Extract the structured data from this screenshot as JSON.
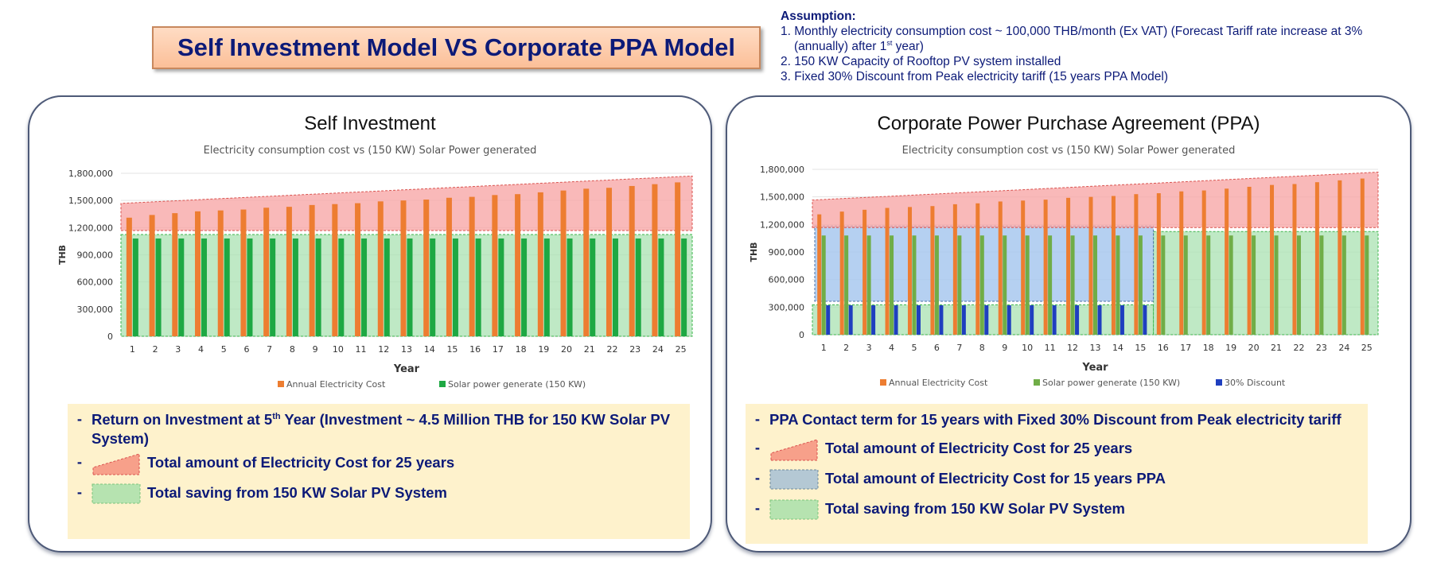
{
  "title": "Self Investment Model VS Corporate PPA Model",
  "assumptions": {
    "heading": "Assumption:",
    "item1_a": "1. Monthly electricity consumption cost ~ 100,000 THB/month (Ex VAT) (Forecast Tariff rate increase at 3%",
    "item1_b_pre": "(annually) after 1",
    "item1_b_sup": "st",
    "item1_b_post": " year)",
    "item2": "2. 150 KW Capacity of Rooftop PV system installed",
    "item3": "3. Fixed 30% Discount from Peak electricity tariff (15 years PPA Model)"
  },
  "colors": {
    "title_text": "#0c1a78",
    "cost_bar": "#ed7d31",
    "solar_bar_left": "#1ea843",
    "solar_bar_right": "#70ad47",
    "discount_bar": "#1f3fbf",
    "red_area": "#f7a8a8",
    "green_area": "#a9e2b2",
    "blue_area": "#a8c8ee",
    "note_bg": "#fef2cc"
  },
  "left_panel": {
    "title": "Self Investment",
    "subtitle": "Electricity consumption  cost vs (150 KW) Solar Power generated",
    "notes": {
      "roi_pre": "Return on Investment at 5",
      "roi_sup": "th",
      "roi_post": " Year (Investment ~ 4.5 Million THB for 150 KW Solar PV System)",
      "total_cost": "Total amount of Electricity Cost for 25 years",
      "total_saving": "Total saving from 150 KW Solar PV System"
    }
  },
  "right_panel": {
    "title": "Corporate Power Purchase Agreement (PPA)",
    "subtitle": "Electricity consumption  cost vs (150 KW) Solar Power generated",
    "notes": {
      "ppa_term": "PPA Contact term for 15 years with Fixed 30% Discount from Peak electricity tariff",
      "total_cost": "Total amount of Electricity Cost for 25 years",
      "ppa_cost": "Total amount of Electricity Cost for 15 years PPA",
      "total_saving": "Total saving from 150 KW Solar PV System"
    }
  },
  "chart_data": [
    {
      "type": "bar",
      "title": "Self Investment",
      "subtitle": "Electricity consumption  cost vs (150 KW) Solar Power generated",
      "xlabel": "Year",
      "ylabel": "THB",
      "ylim": [
        0,
        1800000
      ],
      "yticks": [
        0,
        300000,
        600000,
        900000,
        1200000,
        1500000,
        1800000
      ],
      "ytick_labels": [
        "0",
        "300,000",
        "600,000",
        "900,000",
        "1,200,000",
        "1,500,000",
        "1,800,000"
      ],
      "grid": true,
      "legend": "bottom",
      "categories": [
        "1",
        "2",
        "3",
        "4",
        "5",
        "6",
        "7",
        "8",
        "9",
        "10",
        "11",
        "12",
        "13",
        "14",
        "15",
        "16",
        "17",
        "18",
        "19",
        "20",
        "21",
        "22",
        "23",
        "24",
        "25"
      ],
      "series": [
        {
          "name": "Annual Electricity Cost",
          "values": [
            1310000,
            1340000,
            1360000,
            1380000,
            1390000,
            1400000,
            1420000,
            1430000,
            1450000,
            1460000,
            1470000,
            1490000,
            1500000,
            1510000,
            1530000,
            1540000,
            1560000,
            1570000,
            1590000,
            1610000,
            1630000,
            1640000,
            1660000,
            1680000,
            1700000
          ]
        },
        {
          "name": "Solar power generate (150 KW)",
          "values": [
            1080000,
            1080000,
            1080000,
            1080000,
            1080000,
            1080000,
            1080000,
            1080000,
            1080000,
            1080000,
            1080000,
            1080000,
            1080000,
            1080000,
            1080000,
            1080000,
            1080000,
            1080000,
            1080000,
            1080000,
            1080000,
            1080000,
            1080000,
            1080000,
            1080000
          ]
        }
      ]
    },
    {
      "type": "bar",
      "title": "Corporate Power Purchase Agreement (PPA)",
      "subtitle": "Electricity consumption  cost vs (150 KW) Solar Power generated",
      "xlabel": "Year",
      "ylabel": "THB",
      "ylim": [
        0,
        1800000
      ],
      "yticks": [
        0,
        300000,
        600000,
        900000,
        1200000,
        1500000,
        1800000
      ],
      "ytick_labels": [
        "0",
        "300,000",
        "600,000",
        "900,000",
        "1,200,000",
        "1,500,000",
        "1,800,000"
      ],
      "grid": true,
      "legend": "bottom",
      "categories": [
        "1",
        "2",
        "3",
        "4",
        "5",
        "6",
        "7",
        "8",
        "9",
        "10",
        "11",
        "12",
        "13",
        "14",
        "15",
        "16",
        "17",
        "18",
        "19",
        "20",
        "21",
        "22",
        "23",
        "24",
        "25"
      ],
      "series": [
        {
          "name": "Annual Electricity Cost",
          "values": [
            1310000,
            1340000,
            1360000,
            1380000,
            1390000,
            1400000,
            1420000,
            1430000,
            1450000,
            1460000,
            1470000,
            1490000,
            1500000,
            1510000,
            1530000,
            1540000,
            1560000,
            1570000,
            1590000,
            1610000,
            1630000,
            1640000,
            1660000,
            1680000,
            1700000
          ]
        },
        {
          "name": "Solar power generate (150 KW)",
          "values": [
            1080000,
            1080000,
            1080000,
            1080000,
            1080000,
            1080000,
            1080000,
            1080000,
            1080000,
            1080000,
            1080000,
            1080000,
            1080000,
            1080000,
            1080000,
            1080000,
            1080000,
            1080000,
            1080000,
            1080000,
            1080000,
            1080000,
            1080000,
            1080000,
            1080000
          ]
        },
        {
          "name": "30% Discount",
          "values": [
            320000,
            320000,
            320000,
            320000,
            320000,
            320000,
            320000,
            320000,
            320000,
            320000,
            320000,
            320000,
            320000,
            320000,
            320000,
            null,
            null,
            null,
            null,
            null,
            null,
            null,
            null,
            null,
            null
          ]
        }
      ]
    }
  ]
}
